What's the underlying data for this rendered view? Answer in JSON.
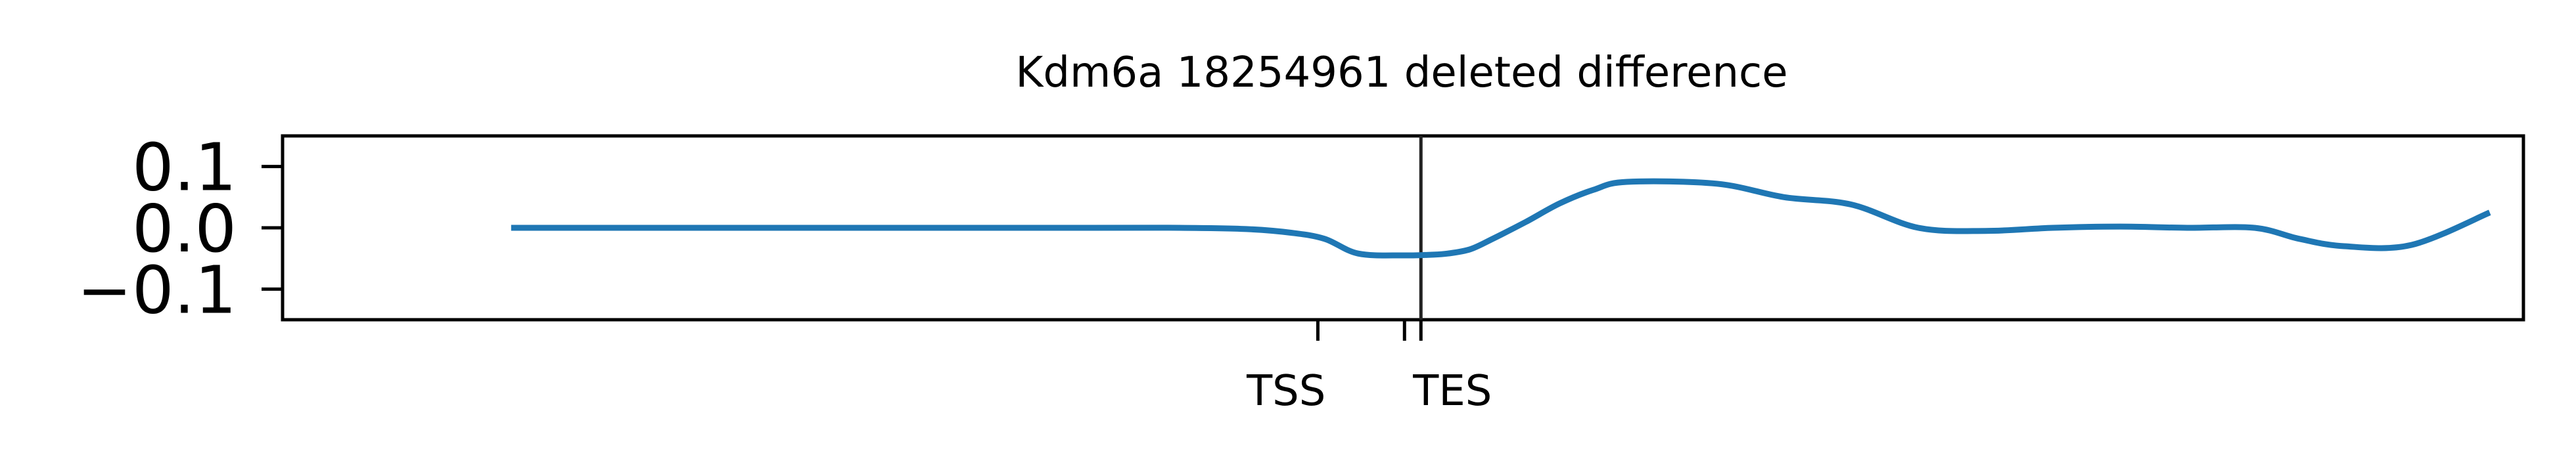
{
  "chart_data": {
    "type": "line",
    "title": "Kdm6a 18254961 deleted difference",
    "xlabel": "",
    "ylabel": "",
    "xlim": [
      0,
      1000
    ],
    "ylim": [
      -0.15,
      0.15
    ],
    "yticks": [
      {
        "value": 0.1,
        "label": "0.1"
      },
      {
        "value": 0.0,
        "label": "0.0"
      },
      {
        "value": -0.1,
        "label": "−0.1"
      }
    ],
    "xticks": [
      {
        "value": 462,
        "label": "TSS"
      },
      {
        "value": 508,
        "label": "TES"
      }
    ],
    "vline": {
      "x": 508
    },
    "grid": false,
    "legend": "none",
    "line_color": "#1f77b4",
    "series": [
      {
        "x": [
          102,
          180,
          280,
          360,
          400,
          430,
          450,
          465,
          480,
          500,
          512,
          520,
          530,
          540,
          555,
          570,
          585,
          600,
          640,
          670,
          700,
          730,
          760,
          790,
          820,
          850,
          880,
          900,
          920,
          950,
          985
        ],
        "y": [
          0.0,
          0.0,
          0.0,
          0.0,
          0.0,
          -0.002,
          -0.008,
          -0.018,
          -0.042,
          -0.045,
          -0.044,
          -0.042,
          -0.035,
          -0.018,
          0.01,
          0.04,
          0.062,
          0.075,
          0.072,
          0.05,
          0.038,
          0.0,
          -0.005,
          0.0,
          0.002,
          0.0,
          0.0,
          -0.018,
          -0.03,
          -0.028,
          0.025
        ]
      }
    ]
  }
}
